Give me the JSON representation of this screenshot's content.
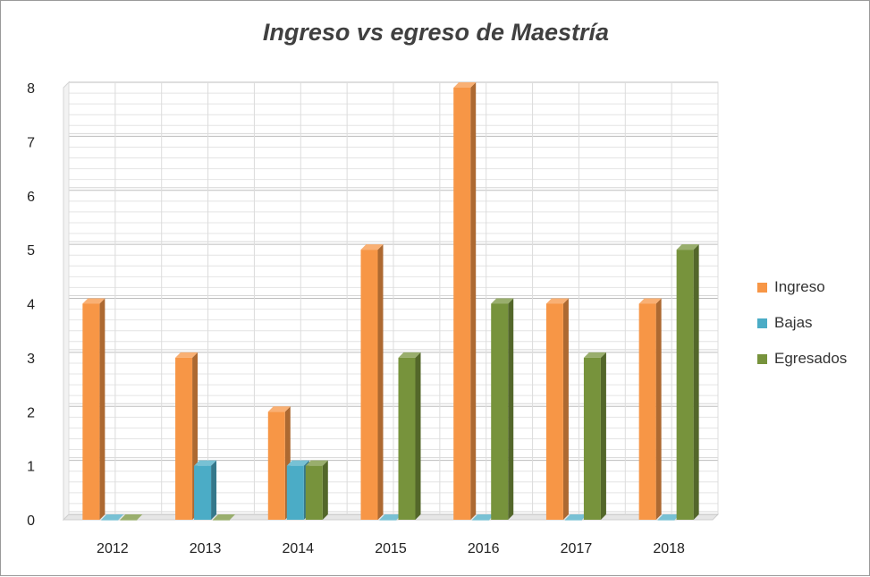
{
  "chart_data": {
    "type": "bar",
    "title": "Ingreso vs egreso  de Maestría",
    "categories": [
      "2012",
      "2013",
      "2014",
      "2015",
      "2016",
      "2017",
      "2018"
    ],
    "series": [
      {
        "name": "Ingreso",
        "values": [
          4,
          3,
          2,
          5,
          8,
          4,
          4
        ],
        "color": "#f79646"
      },
      {
        "name": "Bajas",
        "values": [
          0,
          1,
          1,
          0,
          0,
          0,
          0
        ],
        "color": "#4bacc6"
      },
      {
        "name": "Egresados",
        "values": [
          0,
          0,
          1,
          3,
          4,
          3,
          5
        ],
        "color": "#77933c"
      }
    ],
    "y_ticks": [
      "0",
      "1",
      "2",
      "3",
      "4",
      "5",
      "6",
      "7",
      "8"
    ],
    "ylim": [
      0,
      8
    ],
    "grid": true,
    "legend_position": "right",
    "style": "3d-clustered-column"
  }
}
